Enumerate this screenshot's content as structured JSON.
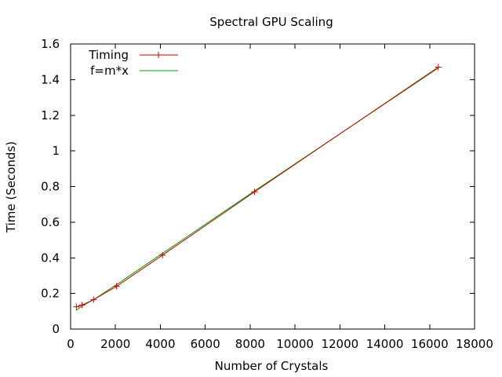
{
  "chart_data": {
    "type": "line",
    "title": "Spectral GPU Scaling",
    "xlabel": "Number of Crystals",
    "ylabel": "Time (Seconds)",
    "xlim": [
      0,
      18000
    ],
    "ylim": [
      0,
      1.6
    ],
    "xticks": [
      0,
      2000,
      4000,
      6000,
      8000,
      10000,
      12000,
      14000,
      16000,
      18000
    ],
    "yticks": [
      0,
      0.2,
      0.4,
      0.6,
      0.8,
      1,
      1.2,
      1.4,
      1.6
    ],
    "xtick_labels": [
      "0",
      "2000",
      "4000",
      "6000",
      "8000",
      "10000",
      "12000",
      "14000",
      "16000",
      "18000"
    ],
    "ytick_labels": [
      "0",
      "0.2",
      "0.4",
      "0.6",
      "0.8",
      "1",
      "1.2",
      "1.4",
      "1.6"
    ],
    "grid": false,
    "legend_position": "top-left",
    "series": [
      {
        "name": "Timing",
        "style": "linespoints",
        "marker": "plus",
        "color": "#cc0000",
        "x": [
          256,
          512,
          1024,
          2048,
          4096,
          8192,
          16384
        ],
        "y": [
          0.125,
          0.135,
          0.165,
          0.24,
          0.415,
          0.77,
          1.47
        ]
      },
      {
        "name": "f=m*x",
        "style": "line",
        "color": "#00a000",
        "x": [
          256,
          512,
          1024,
          2048,
          4096,
          8192,
          16384
        ],
        "y": [
          0.105,
          0.13,
          0.165,
          0.25,
          0.425,
          0.775,
          1.465
        ]
      }
    ]
  }
}
